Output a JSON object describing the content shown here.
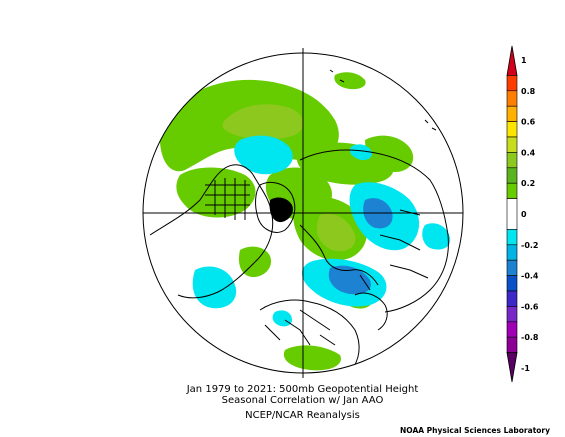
{
  "title": {
    "line1": "Jan 1979 to 2021: 500mb Geopotential Height",
    "line2": "Seasonal Correlation w/ Jan AAO",
    "line3": "NCEP/NCAR Reanalysis"
  },
  "credit": "NOAA Physical Sciences Laboratory",
  "map": {
    "projection": "north-polar-stereographic",
    "gridlines": "cross through pole",
    "land_outline_color": "#000000"
  },
  "colorbar": {
    "tick_labels": [
      "1",
      "0.8",
      "0.6",
      "0.4",
      "0.2",
      "0",
      "-0.2",
      "-0.4",
      "-0.6",
      "-0.8",
      "-1"
    ],
    "bins": [
      {
        "from": 0.9,
        "to": 1.0,
        "color": "#d4001a"
      },
      {
        "from": 0.8,
        "to": 0.9,
        "color": "#ff3c00"
      },
      {
        "from": 0.7,
        "to": 0.8,
        "color": "#ff7f00"
      },
      {
        "from": 0.6,
        "to": 0.7,
        "color": "#ffb000"
      },
      {
        "from": 0.5,
        "to": 0.6,
        "color": "#ffe600"
      },
      {
        "from": 0.4,
        "to": 0.5,
        "color": "#c8dc1e"
      },
      {
        "from": 0.3,
        "to": 0.4,
        "color": "#8cc81e"
      },
      {
        "from": 0.2,
        "to": 0.3,
        "color": "#5ab41e"
      },
      {
        "from": 0.1,
        "to": 0.2,
        "color": "#66cc00"
      },
      {
        "from": -0.1,
        "to": 0.1,
        "color": "#ffffff"
      },
      {
        "from": -0.2,
        "to": -0.1,
        "color": "#00e6f0"
      },
      {
        "from": -0.3,
        "to": -0.2,
        "color": "#00b4e6"
      },
      {
        "from": -0.4,
        "to": -0.3,
        "color": "#1e82d2"
      },
      {
        "from": -0.5,
        "to": -0.4,
        "color": "#0a50c8"
      },
      {
        "from": -0.6,
        "to": -0.5,
        "color": "#3c28c8"
      },
      {
        "from": -0.7,
        "to": -0.6,
        "color": "#7828c8"
      },
      {
        "from": -0.8,
        "to": -0.7,
        "color": "#a000b4"
      },
      {
        "from": -0.9,
        "to": -0.8,
        "color": "#8c0096"
      },
      {
        "from": -1.0,
        "to": -0.9,
        "color": "#5a0064"
      }
    ]
  }
}
